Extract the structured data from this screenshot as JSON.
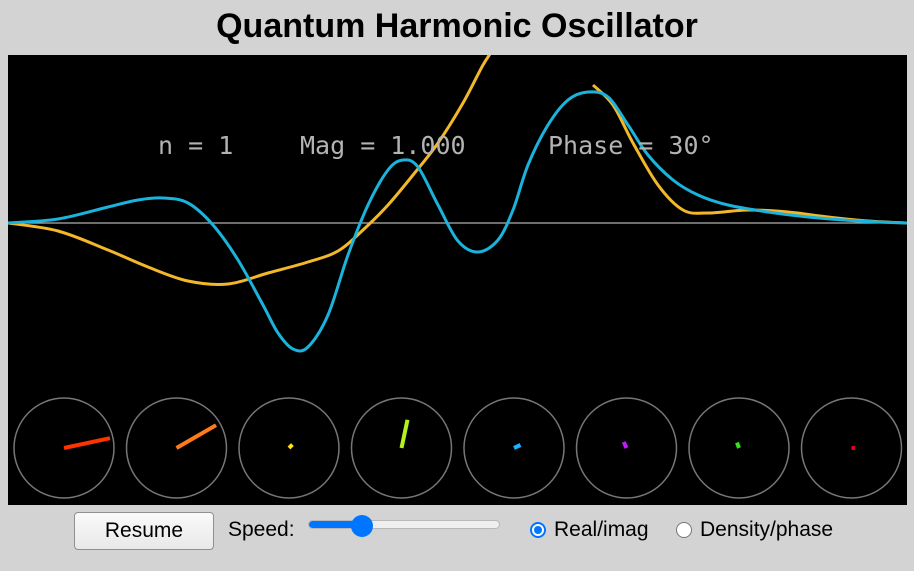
{
  "title": "Quantum Harmonic Oscillator",
  "readout": {
    "n": "n = 1",
    "mag": "Mag = 1.000",
    "phase": "Phase = 30°"
  },
  "colors": {
    "real": "#f2b82a",
    "imag": "#1ab3dc",
    "axis": "#b0b0b0",
    "ring": "#777777"
  },
  "phasors": [
    {
      "color": "#ff3300",
      "magnitude": 0.98,
      "angle_deg": 12
    },
    {
      "color": "#ff7a1a",
      "magnitude": 0.95,
      "angle_deg": 30
    },
    {
      "color": "#ffe11a",
      "magnitude": 0.1,
      "angle_deg": 45
    },
    {
      "color": "#b4f21a",
      "magnitude": 0.6,
      "angle_deg": 78
    },
    {
      "color": "#1ab3ff",
      "magnitude": 0.15,
      "angle_deg": 25
    },
    {
      "color": "#c11aff",
      "magnitude": 0.14,
      "angle_deg": 115
    },
    {
      "color": "#33e01a",
      "magnitude": 0.12,
      "angle_deg": 110
    },
    {
      "color": "#e8001a",
      "magnitude": 0.07,
      "angle_deg": 0
    }
  ],
  "controls": {
    "resume_label": "Resume",
    "speed_label": "Speed:",
    "speed_value": 0.28,
    "mode_real_imag_label": "Real/imag",
    "mode_density_phase_label": "Density/phase",
    "selected_mode": "real_imag"
  }
}
